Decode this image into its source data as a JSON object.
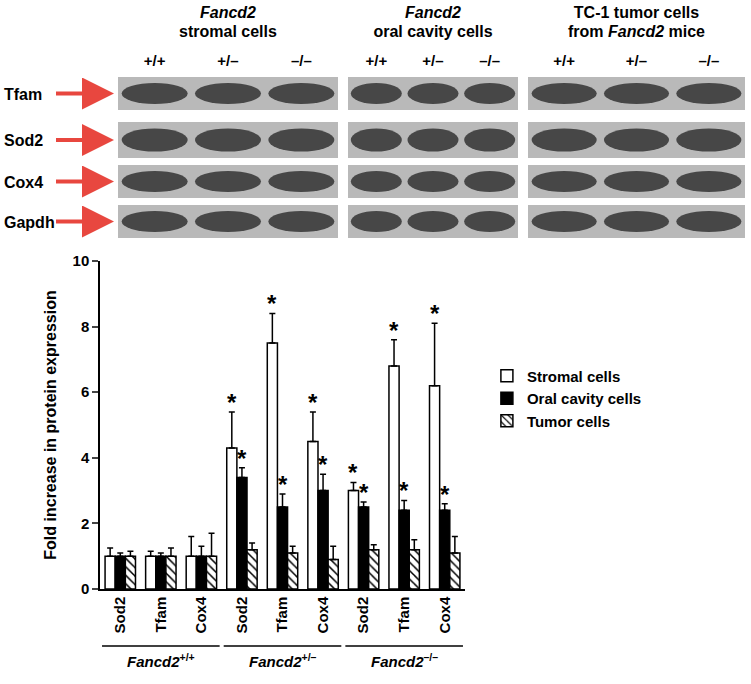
{
  "blots": {
    "gene": "Fancd2",
    "rows": [
      "Tfam",
      "Sod2",
      "Cox4",
      "Gapdh"
    ],
    "panels": [
      {
        "title": [
          "Fancd2",
          "stromal cells"
        ],
        "lanes": [
          "+/+",
          "+/–",
          "–/–"
        ]
      },
      {
        "title": [
          "Fancd2",
          "oral cavity cells"
        ],
        "lanes": [
          "+/+",
          "+/–",
          "–/–"
        ]
      },
      {
        "title": [
          "TC-1 tumor cells",
          "from Fancd2 mice"
        ],
        "lanes": [
          "+/+",
          "+/–",
          "–/–"
        ]
      }
    ]
  },
  "chart_data": {
    "type": "bar",
    "categories": [
      "Sod2",
      "Tfam",
      "Cox4",
      "Sod2",
      "Tfam",
      "Cox4",
      "Sod2",
      "Tfam",
      "Cox4"
    ],
    "groups": [
      {
        "gene": "Fancd2",
        "genotype": "+/+"
      },
      {
        "gene": "Fancd2",
        "genotype": "+/–"
      },
      {
        "gene": "Fancd2",
        "genotype": "–/–"
      }
    ],
    "y_label": "Fold increase in protein expression",
    "ylim": [
      0,
      10
    ],
    "yticks": [
      0,
      2,
      4,
      6,
      8,
      10
    ],
    "grid": false,
    "legend": "right",
    "series": [
      {
        "name": "Stromal cells",
        "color": "#ffffff",
        "marker": "solid",
        "values": [
          1.0,
          1.0,
          1.0,
          4.3,
          7.5,
          4.5,
          3.0,
          6.8,
          6.2
        ],
        "error": [
          0.25,
          0.15,
          0.6,
          1.1,
          0.9,
          0.9,
          0.25,
          0.8,
          1.9
        ],
        "significance": [
          null,
          null,
          null,
          "*",
          "*",
          "*",
          "*",
          "*",
          "*"
        ]
      },
      {
        "name": "Oral cavity cells",
        "color": "#000000",
        "marker": "solid",
        "values": [
          1.0,
          1.0,
          1.0,
          3.4,
          2.5,
          3.0,
          2.5,
          2.4,
          2.4
        ],
        "error": [
          0.1,
          0.1,
          0.3,
          0.3,
          0.4,
          0.5,
          0.15,
          0.3,
          0.2
        ],
        "significance": [
          null,
          null,
          null,
          "*",
          "*",
          "*",
          "*",
          "*",
          "*"
        ]
      },
      {
        "name": "Tumor cells",
        "color": "#ffffff",
        "marker": "hatched",
        "values": [
          1.0,
          1.0,
          1.0,
          1.2,
          1.1,
          0.9,
          1.2,
          1.2,
          1.1
        ],
        "error": [
          0.15,
          0.25,
          0.7,
          0.2,
          0.2,
          0.4,
          0.15,
          0.3,
          0.5
        ],
        "significance": [
          null,
          null,
          null,
          null,
          null,
          null,
          null,
          null,
          null
        ]
      }
    ]
  }
}
